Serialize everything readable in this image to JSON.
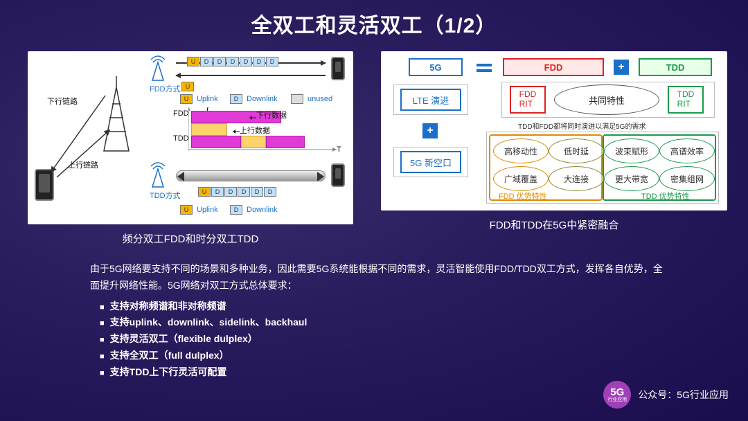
{
  "title": "全双工和灵活双工（1/2）",
  "left_diagram": {
    "caption": "频分双工FDD和时分双工TDD",
    "labels": {
      "downlink_path": "下行链路",
      "uplink_path": "上行链路",
      "fdd_mode": "FDD方式",
      "tdd_mode": "TDD方式",
      "uplink": "Uplink",
      "downlink": "Downlink",
      "unused": "unused",
      "fdd": "FDD",
      "tdd": "TDD",
      "down_data": "下行数据",
      "up_data": "上行数据",
      "axis_f": "f",
      "axis_t": "T"
    },
    "colors": {
      "u_slot": "#f7b500",
      "d_slot": "#bfe1ff",
      "unused_slot": "#dddddd",
      "dl_band": "#e23ad6",
      "ul_band": "#ffc94a",
      "ul_band_border": "#d1a53a",
      "axis": "#888888",
      "label": "#1a6fc9"
    },
    "slots": {
      "fdd_row1": [
        "U",
        "D",
        "D",
        "D",
        "D",
        "D",
        "D"
      ],
      "fdd_row2": [
        "U"
      ],
      "tdd_row": [
        "U",
        "D",
        "D",
        "D",
        "D",
        "D"
      ]
    }
  },
  "right_diagram": {
    "caption": "FDD和TDD在5G中紧密融合",
    "top_row": {
      "g5": "5G",
      "fdd": "FDD",
      "tdd": "TDD"
    },
    "mid_row": {
      "lte": "LTE 演进",
      "fdd_rit": "FDD\nRIT",
      "tdd_rit": "TDD\nRIT",
      "shared": "共同特性"
    },
    "note": "TDD和FDD都将同时演进以满足5G的需求",
    "bottom": {
      "nr": "5G 新空口",
      "bubbles": [
        {
          "label": "高移动性",
          "color": "#d98a00"
        },
        {
          "label": "低时延",
          "color": "#8a8a30"
        },
        {
          "label": "波束赋形",
          "color": "#1a9a4a"
        },
        {
          "label": "高谱效率",
          "color": "#1a9a4a"
        },
        {
          "label": "广域覆盖",
          "color": "#d98a00"
        },
        {
          "label": "大连接",
          "color": "#8a8a30"
        },
        {
          "label": "更大带宽",
          "color": "#1a9a4a"
        },
        {
          "label": "密集组网",
          "color": "#1a9a4a"
        }
      ],
      "fdd_adv": "FDD 优势特性",
      "tdd_adv": "TDD 优势特性"
    },
    "colors": {
      "blue": "#1a6fc9",
      "red": "#d22222",
      "green": "#1a9a4a",
      "orange": "#e08a00",
      "frame": "#bbbbbb"
    }
  },
  "paragraph": "由于5G网络要支持不同的场景和多种业务，因此需要5G系统能根据不同的需求，灵活智能使用FDD/TDD双工方式，发挥各自优势，全面提升网络性能。5G网络对双工方式总体要求：",
  "bullets": [
    "支持对称频谱和非对称频谱",
    "支持uplink、downlink、sidelink、backhaul",
    "支持灵活双工（flexible dulplex）",
    "支持全双工（full dulplex）",
    "支持TDD上下行灵活可配置"
  ],
  "footer": {
    "logo_main": "5G",
    "logo_sub": "行业应用",
    "text": "公众号：5G行业应用"
  }
}
